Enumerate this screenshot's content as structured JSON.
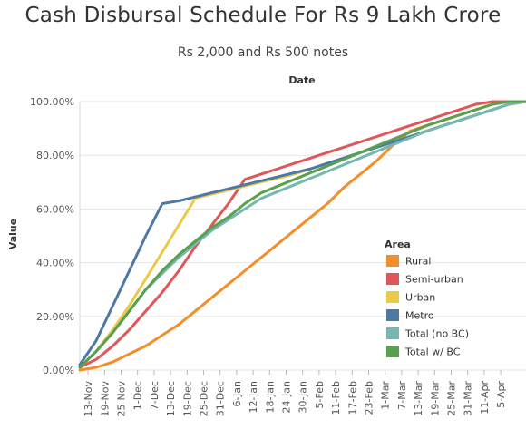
{
  "chart_data": {
    "type": "line",
    "title": "Cash Disbursal Schedule For Rs 9 Lakh Crore",
    "subtitle": "Rs 2,000 and Rs 500 notes",
    "xlabel": "Date",
    "ylabel": "Value",
    "ylim": [
      0,
      1
    ],
    "y_ticks": [
      "0.00%",
      "20.00%",
      "40.00%",
      "60.00%",
      "80.00%",
      "100.00%"
    ],
    "x_tick_labels": [
      "13-Nov",
      "19-Nov",
      "25-Nov",
      "1-Dec",
      "7-Dec",
      "13-Dec",
      "19-Dec",
      "25-Dec",
      "31-Dec",
      "6-Jan",
      "12-Jan",
      "18-Jan",
      "24-Jan",
      "30-Jan",
      "5-Feb",
      "11-Feb",
      "17-Feb",
      "23-Feb",
      "1-Mar",
      "7-Mar",
      "13-Mar",
      "19-Mar",
      "25-Mar",
      "31-Mar",
      "11-Apr",
      "5-Apr"
    ],
    "grid": true,
    "legend": {
      "title": "Area",
      "position": "right"
    },
    "series": [
      {
        "name": "Rural",
        "color": "#F28E2B",
        "points": [
          [
            0,
            0.0
          ],
          [
            1,
            0.01
          ],
          [
            2,
            0.03
          ],
          [
            3,
            0.06
          ],
          [
            4,
            0.09
          ],
          [
            5,
            0.13
          ],
          [
            6,
            0.17
          ],
          [
            7,
            0.22
          ],
          [
            8,
            0.27
          ],
          [
            9,
            0.32
          ],
          [
            10,
            0.37
          ],
          [
            11,
            0.42
          ],
          [
            12,
            0.47
          ],
          [
            13,
            0.52
          ],
          [
            14,
            0.57
          ],
          [
            15,
            0.62
          ],
          [
            16,
            0.68
          ],
          [
            17,
            0.73
          ],
          [
            18,
            0.78
          ],
          [
            19,
            0.84
          ],
          [
            20,
            0.89
          ],
          [
            21,
            0.91
          ],
          [
            22,
            0.93
          ],
          [
            23,
            0.95
          ],
          [
            24,
            0.97
          ],
          [
            25,
            0.99
          ],
          [
            26,
            1.0
          ],
          [
            27,
            1.0
          ]
        ]
      },
      {
        "name": "Semi-urban",
        "color": "#E15759",
        "points": [
          [
            0,
            0.01
          ],
          [
            1,
            0.04
          ],
          [
            2,
            0.09
          ],
          [
            3,
            0.15
          ],
          [
            4,
            0.22
          ],
          [
            5,
            0.29
          ],
          [
            6,
            0.37
          ],
          [
            7,
            0.46
          ],
          [
            8,
            0.54
          ],
          [
            9,
            0.62
          ],
          [
            10,
            0.71
          ],
          [
            11,
            0.73
          ],
          [
            12,
            0.75
          ],
          [
            13,
            0.77
          ],
          [
            14,
            0.79
          ],
          [
            15,
            0.81
          ],
          [
            16,
            0.83
          ],
          [
            17,
            0.85
          ],
          [
            18,
            0.87
          ],
          [
            19,
            0.89
          ],
          [
            20,
            0.91
          ],
          [
            21,
            0.93
          ],
          [
            22,
            0.95
          ],
          [
            23,
            0.97
          ],
          [
            24,
            0.99
          ],
          [
            25,
            1.0
          ],
          [
            26,
            1.0
          ],
          [
            27,
            1.0
          ]
        ]
      },
      {
        "name": "Urban",
        "color": "#EDC948",
        "points": [
          [
            0,
            0.01
          ],
          [
            1,
            0.07
          ],
          [
            2,
            0.15
          ],
          [
            3,
            0.24
          ],
          [
            4,
            0.34
          ],
          [
            5,
            0.44
          ],
          [
            6,
            0.54
          ],
          [
            7,
            0.64
          ],
          [
            8,
            0.655
          ],
          [
            9,
            0.67
          ],
          [
            10,
            0.685
          ],
          [
            11,
            0.7
          ],
          [
            12,
            0.715
          ],
          [
            13,
            0.73
          ],
          [
            14,
            0.75
          ],
          [
            15,
            0.77
          ],
          [
            16,
            0.79
          ],
          [
            17,
            0.81
          ],
          [
            18,
            0.83
          ],
          [
            19,
            0.85
          ],
          [
            20,
            0.87
          ],
          [
            21,
            0.89
          ],
          [
            22,
            0.91
          ],
          [
            23,
            0.93
          ],
          [
            24,
            0.95
          ],
          [
            25,
            0.97
          ],
          [
            26,
            0.99
          ],
          [
            27,
            1.0
          ]
        ]
      },
      {
        "name": "Metro",
        "color": "#4E79A7",
        "points": [
          [
            0,
            0.02
          ],
          [
            1,
            0.11
          ],
          [
            2,
            0.24
          ],
          [
            3,
            0.37
          ],
          [
            4,
            0.5
          ],
          [
            5,
            0.62
          ],
          [
            6,
            0.63
          ],
          [
            7,
            0.645
          ],
          [
            8,
            0.66
          ],
          [
            9,
            0.675
          ],
          [
            10,
            0.69
          ],
          [
            11,
            0.705
          ],
          [
            12,
            0.72
          ],
          [
            13,
            0.735
          ],
          [
            14,
            0.75
          ],
          [
            15,
            0.77
          ],
          [
            16,
            0.79
          ],
          [
            17,
            0.81
          ],
          [
            18,
            0.83
          ],
          [
            19,
            0.85
          ],
          [
            20,
            0.87
          ],
          [
            21,
            0.89
          ],
          [
            22,
            0.91
          ],
          [
            23,
            0.93
          ],
          [
            24,
            0.95
          ],
          [
            25,
            0.97
          ],
          [
            26,
            0.99
          ],
          [
            27,
            1.0
          ]
        ]
      },
      {
        "name": "Total (no BC)",
        "color": "#76B7B2",
        "points": [
          [
            0,
            0.01
          ],
          [
            1,
            0.07
          ],
          [
            2,
            0.14
          ],
          [
            3,
            0.22
          ],
          [
            4,
            0.3
          ],
          [
            5,
            0.36
          ],
          [
            6,
            0.42
          ],
          [
            7,
            0.47
          ],
          [
            8,
            0.52
          ],
          [
            9,
            0.56
          ],
          [
            10,
            0.6
          ],
          [
            11,
            0.64
          ],
          [
            12,
            0.665
          ],
          [
            13,
            0.69
          ],
          [
            14,
            0.715
          ],
          [
            15,
            0.74
          ],
          [
            16,
            0.765
          ],
          [
            17,
            0.79
          ],
          [
            18,
            0.815
          ],
          [
            19,
            0.84
          ],
          [
            20,
            0.865
          ],
          [
            21,
            0.89
          ],
          [
            22,
            0.91
          ],
          [
            23,
            0.93
          ],
          [
            24,
            0.95
          ],
          [
            25,
            0.97
          ],
          [
            26,
            0.99
          ],
          [
            27,
            1.0
          ]
        ]
      },
      {
        "name": "Total w/ BC",
        "color": "#59A14F",
        "points": [
          [
            0,
            0.01
          ],
          [
            1,
            0.07
          ],
          [
            2,
            0.14
          ],
          [
            3,
            0.22
          ],
          [
            4,
            0.3
          ],
          [
            5,
            0.37
          ],
          [
            6,
            0.43
          ],
          [
            7,
            0.48
          ],
          [
            8,
            0.53
          ],
          [
            9,
            0.57
          ],
          [
            10,
            0.62
          ],
          [
            11,
            0.66
          ],
          [
            12,
            0.685
          ],
          [
            13,
            0.71
          ],
          [
            14,
            0.735
          ],
          [
            15,
            0.76
          ],
          [
            16,
            0.785
          ],
          [
            17,
            0.81
          ],
          [
            18,
            0.835
          ],
          [
            19,
            0.86
          ],
          [
            20,
            0.885
          ],
          [
            21,
            0.91
          ],
          [
            22,
            0.93
          ],
          [
            23,
            0.95
          ],
          [
            24,
            0.97
          ],
          [
            25,
            0.99
          ],
          [
            26,
            1.0
          ],
          [
            27,
            1.0
          ]
        ]
      }
    ]
  }
}
